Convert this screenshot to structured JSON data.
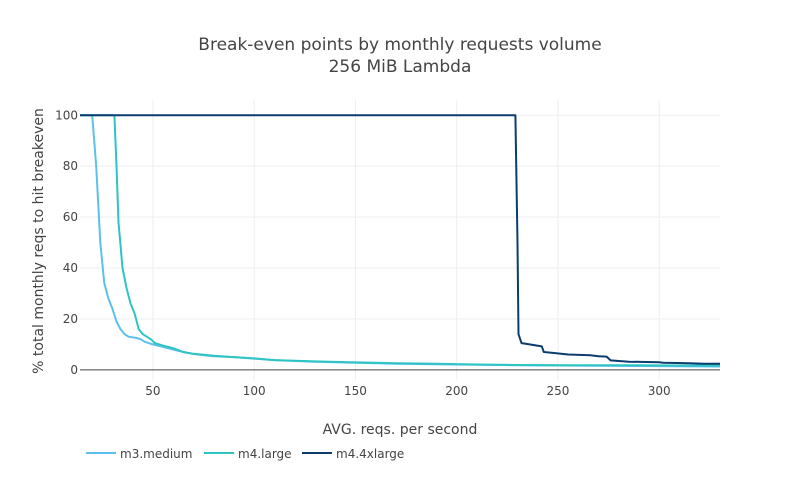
{
  "chart_data": {
    "type": "line",
    "title": "Break-even points by monthly requests volume",
    "subtitle": "256 MiB Lambda",
    "xlabel": "AVG. reqs. per second",
    "ylabel": "% total monthly reqs to hit breakeven",
    "xlim": [
      14,
      330
    ],
    "ylim": [
      -4,
      106
    ],
    "x_ticks": [
      50,
      100,
      150,
      200,
      250,
      300
    ],
    "y_ticks": [
      0,
      20,
      40,
      60,
      80,
      100
    ],
    "grid": true,
    "legend_position": "bottom-left",
    "series": [
      {
        "name": "m3.medium",
        "color": "#5bc0eb",
        "points": [
          [
            14,
            100
          ],
          [
            20,
            100
          ],
          [
            22,
            80
          ],
          [
            24,
            50
          ],
          [
            26,
            34
          ],
          [
            28,
            28
          ],
          [
            30,
            24
          ],
          [
            32,
            19
          ],
          [
            34,
            16
          ],
          [
            36,
            14
          ],
          [
            38,
            13
          ],
          [
            42,
            12.5
          ],
          [
            44,
            12
          ],
          [
            46,
            11
          ],
          [
            50,
            10
          ],
          [
            55,
            9
          ],
          [
            60,
            8
          ],
          [
            65,
            7
          ],
          [
            70,
            6.2
          ],
          [
            80,
            5.3
          ],
          [
            90,
            5
          ],
          [
            100,
            4.4
          ],
          [
            110,
            3.8
          ],
          [
            130,
            3.2
          ],
          [
            150,
            2.8
          ],
          [
            170,
            2.4
          ],
          [
            190,
            2.2
          ],
          [
            210,
            2
          ],
          [
            230,
            1.8
          ],
          [
            250,
            1.7
          ],
          [
            270,
            1.6
          ],
          [
            290,
            1.5
          ],
          [
            310,
            1.4
          ],
          [
            330,
            1.3
          ]
        ]
      },
      {
        "name": "m4.large",
        "color": "#2ec4c4",
        "points": [
          [
            14,
            100
          ],
          [
            31,
            100
          ],
          [
            32,
            80
          ],
          [
            33,
            58
          ],
          [
            35,
            40
          ],
          [
            37,
            32
          ],
          [
            39,
            26
          ],
          [
            41,
            22
          ],
          [
            43,
            16
          ],
          [
            45,
            14
          ],
          [
            47,
            13
          ],
          [
            49,
            12
          ],
          [
            51,
            10.5
          ],
          [
            55,
            9.5
          ],
          [
            60,
            8.5
          ],
          [
            65,
            7
          ],
          [
            70,
            6.3
          ],
          [
            80,
            5.5
          ],
          [
            90,
            5
          ],
          [
            100,
            4.5
          ],
          [
            110,
            3.8
          ],
          [
            130,
            3.3
          ],
          [
            150,
            2.9
          ],
          [
            170,
            2.6
          ],
          [
            190,
            2.4
          ],
          [
            210,
            2.1
          ],
          [
            230,
            1.9
          ],
          [
            260,
            1.8
          ],
          [
            290,
            1.8
          ],
          [
            310,
            1.7
          ],
          [
            330,
            1.7
          ]
        ]
      },
      {
        "name": "m4.4xlarge",
        "color": "#0b3c6e",
        "points": [
          [
            14,
            100
          ],
          [
            229,
            100
          ],
          [
            230,
            50
          ],
          [
            230.5,
            14
          ],
          [
            232,
            10.5
          ],
          [
            236,
            10
          ],
          [
            242,
            9.2
          ],
          [
            243,
            7
          ],
          [
            248,
            6.6
          ],
          [
            255,
            6
          ],
          [
            266,
            5.7
          ],
          [
            270,
            5.3
          ],
          [
            274,
            5.2
          ],
          [
            276,
            3.7
          ],
          [
            285,
            3.2
          ],
          [
            300,
            3
          ],
          [
            302,
            2.8
          ],
          [
            315,
            2.6
          ],
          [
            322,
            2.4
          ],
          [
            330,
            2.4
          ]
        ]
      }
    ]
  }
}
